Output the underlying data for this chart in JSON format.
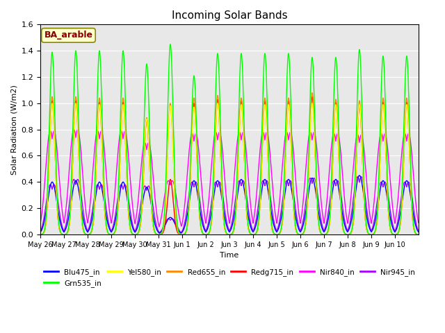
{
  "title": "Incoming Solar Bands",
  "xlabel": "Time",
  "ylabel": "Solar Radiation (W/m2)",
  "annotation": "BA_arable",
  "ylim": [
    0.0,
    1.6
  ],
  "series_order": [
    "Nir945_in",
    "Nir840_in",
    "Blu475_in",
    "Redg715_in",
    "Red655_in",
    "Yel580_in",
    "Grn535_in"
  ],
  "series": {
    "Blu475_in": {
      "color": "#0000ff"
    },
    "Grn535_in": {
      "color": "#00ff00"
    },
    "Yel580_in": {
      "color": "#ffff00"
    },
    "Red655_in": {
      "color": "#ff8800"
    },
    "Redg715_in": {
      "color": "#ff0000"
    },
    "Nir840_in": {
      "color": "#ff00ff"
    },
    "Nir945_in": {
      "color": "#aa00ff"
    }
  },
  "n_days": 16,
  "points_per_day": 144,
  "peaks": [
    {
      "day": 0,
      "grn": 1.39,
      "red": 1.05,
      "yel": 1.0,
      "redg": 1.02,
      "nir840": 0.79,
      "blu": 0.4,
      "nir945": 0.38
    },
    {
      "day": 1,
      "grn": 1.4,
      "red": 1.05,
      "yel": 1.0,
      "redg": 1.02,
      "nir840": 0.8,
      "blu": 0.41,
      "nir945": 0.42
    },
    {
      "day": 2,
      "grn": 1.4,
      "red": 1.04,
      "yel": 0.99,
      "redg": 1.01,
      "nir840": 0.79,
      "blu": 0.4,
      "nir945": 0.38
    },
    {
      "day": 3,
      "grn": 1.4,
      "red": 1.04,
      "yel": 0.99,
      "redg": 1.01,
      "nir840": 0.79,
      "blu": 0.4,
      "nir945": 0.38
    },
    {
      "day": 4,
      "grn": 1.3,
      "red": 0.89,
      "yel": 0.88,
      "redg": 0.88,
      "nir840": 0.7,
      "blu": 0.36,
      "nir945": 0.37
    },
    {
      "day": 5,
      "grn": 1.45,
      "red": 1.0,
      "yel": 0.98,
      "redg": 0.42,
      "nir840": 0.41,
      "blu": 0.13,
      "nir945": 0.12
    },
    {
      "day": 6,
      "grn": 1.21,
      "red": 1.04,
      "yel": 0.97,
      "redg": 1.0,
      "nir840": 0.77,
      "blu": 0.41,
      "nir945": 0.4
    },
    {
      "day": 7,
      "grn": 1.38,
      "red": 1.06,
      "yel": 1.0,
      "redg": 1.03,
      "nir840": 0.78,
      "blu": 0.41,
      "nir945": 0.4
    },
    {
      "day": 8,
      "grn": 1.38,
      "red": 1.04,
      "yel": 0.99,
      "redg": 1.02,
      "nir840": 0.78,
      "blu": 0.42,
      "nir945": 0.41
    },
    {
      "day": 9,
      "grn": 1.38,
      "red": 1.04,
      "yel": 0.99,
      "redg": 1.02,
      "nir840": 0.78,
      "blu": 0.42,
      "nir945": 0.41
    },
    {
      "day": 10,
      "grn": 1.38,
      "red": 1.04,
      "yel": 0.99,
      "redg": 1.02,
      "nir840": 0.78,
      "blu": 0.42,
      "nir945": 0.41
    },
    {
      "day": 11,
      "grn": 1.35,
      "red": 1.08,
      "yel": 1.0,
      "redg": 1.05,
      "nir840": 0.78,
      "blu": 0.43,
      "nir945": 0.43
    },
    {
      "day": 12,
      "grn": 1.35,
      "red": 1.03,
      "yel": 0.99,
      "redg": 1.01,
      "nir840": 0.77,
      "blu": 0.42,
      "nir945": 0.41
    },
    {
      "day": 13,
      "grn": 1.41,
      "red": 1.02,
      "yel": 0.99,
      "redg": 0.99,
      "nir840": 0.76,
      "blu": 0.45,
      "nir945": 0.44
    },
    {
      "day": 14,
      "grn": 1.36,
      "red": 1.04,
      "yel": 0.99,
      "redg": 1.01,
      "nir840": 0.77,
      "blu": 0.41,
      "nir945": 0.4
    },
    {
      "day": 15,
      "grn": 1.36,
      "red": 1.04,
      "yel": 0.99,
      "redg": 1.01,
      "nir840": 0.77,
      "blu": 0.41,
      "nir945": 0.4
    }
  ],
  "xtick_labels": [
    "May 26",
    "May 27",
    "May 28",
    "May 29",
    "May 30",
    "May 31",
    "Jun 1",
    "Jun 2",
    "Jun 3",
    "Jun 4",
    "Jun 5",
    "Jun 6",
    "Jun 7",
    "Jun 8",
    "Jun 9",
    "Jun 10"
  ],
  "bg_color": "#e8e8e8",
  "annotation_bg": "#ffffcc",
  "annotation_text_color": "#880000",
  "annotation_border_color": "#888800",
  "figsize": [
    6.4,
    4.8
  ],
  "dpi": 100
}
